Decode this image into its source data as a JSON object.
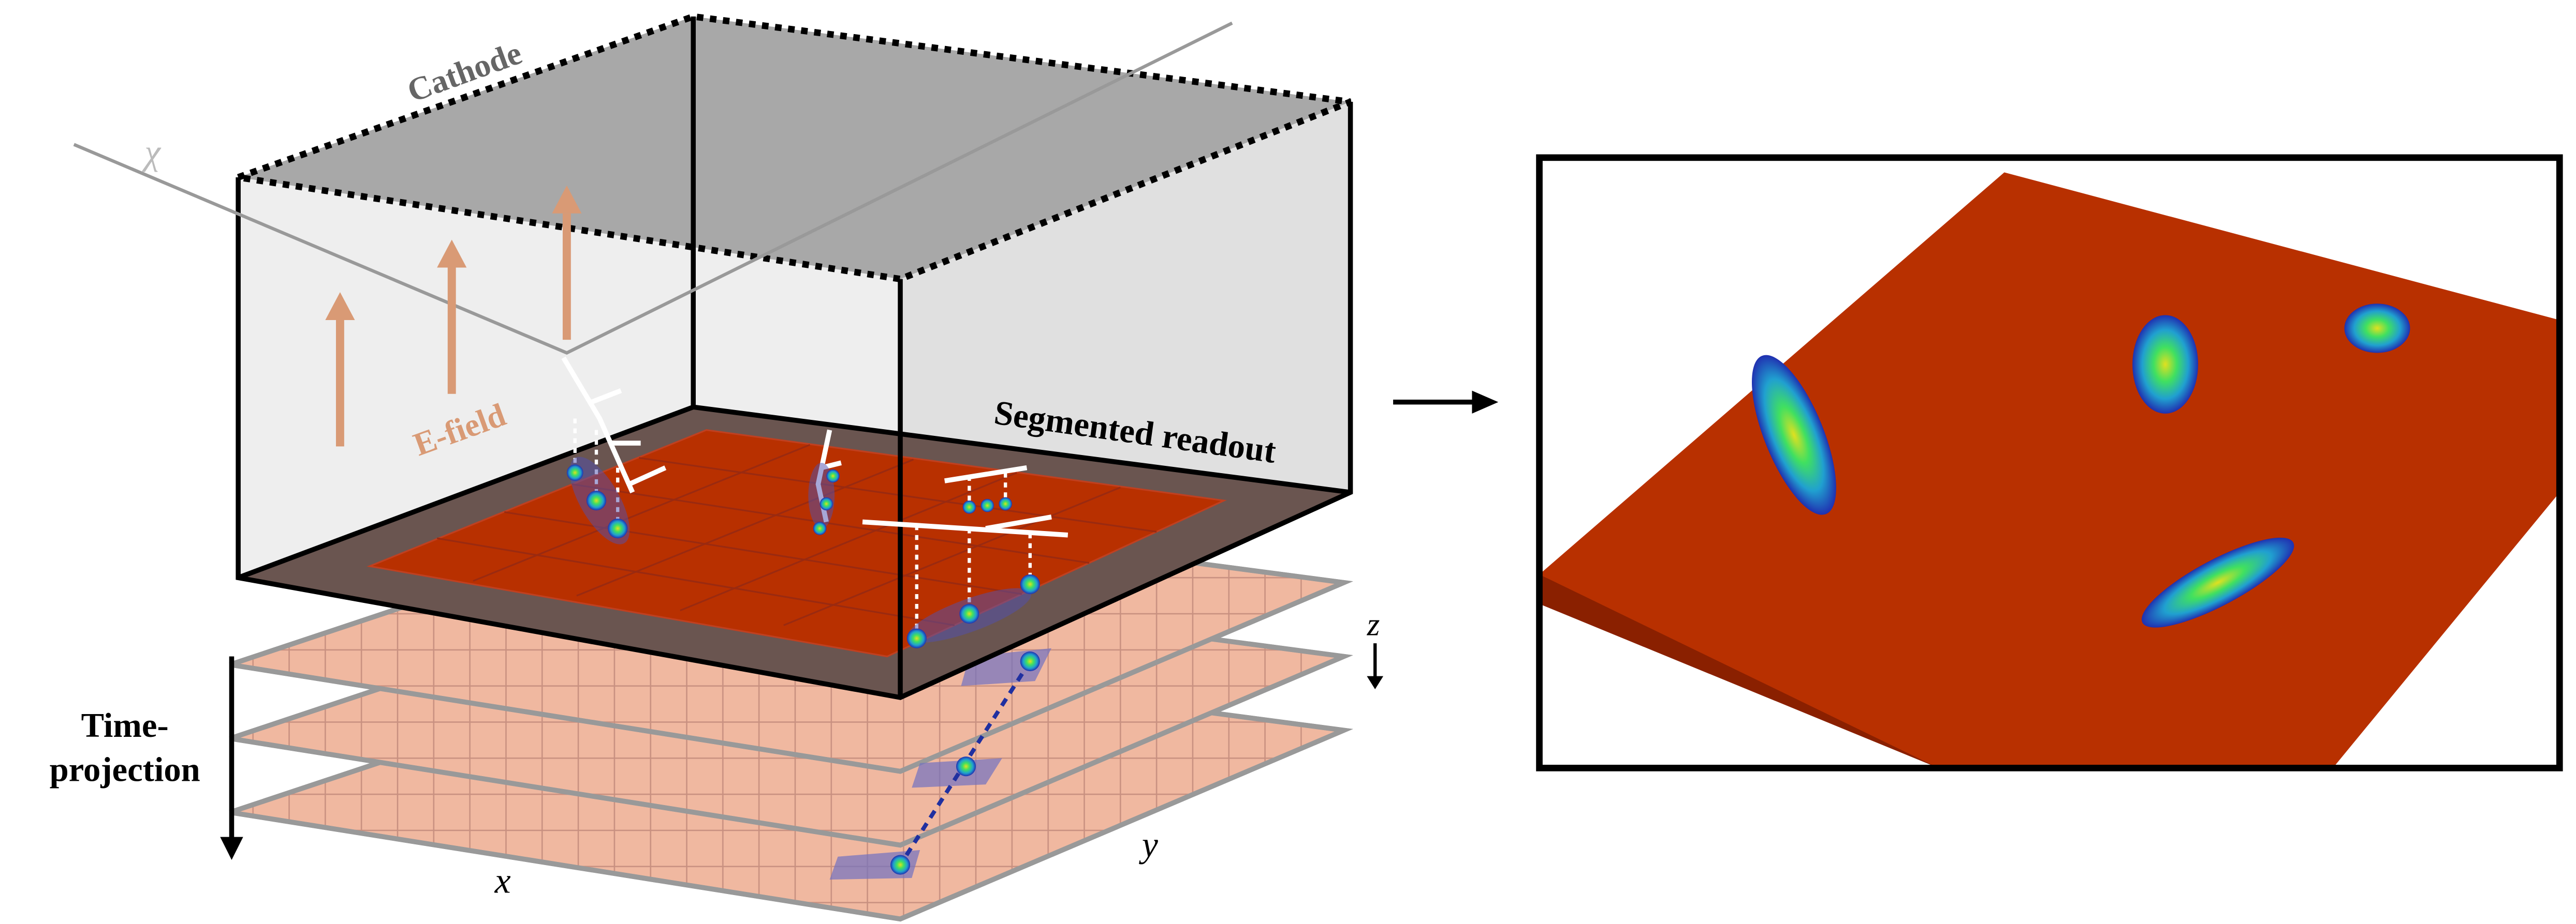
{
  "labels": {
    "cathode": "Cathode",
    "chi": "χ",
    "efield": "E-field",
    "readout": "Segmented readout",
    "z": "z",
    "time_projection": [
      "Time-",
      "projection"
    ],
    "x": "x",
    "y": "y"
  }
}
